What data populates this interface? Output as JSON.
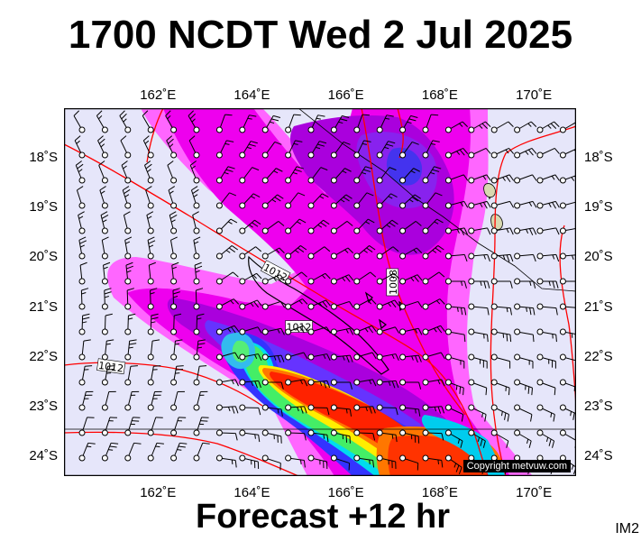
{
  "title": "1700 NCDT Wed 2 Jul 2025",
  "footer": "Forecast +12 hr",
  "corner_tag": "IM2",
  "copyright": "Copyright metvuw.com",
  "map": {
    "lon_ticks": [
      {
        "value": 162,
        "label": "162˚E"
      },
      {
        "value": 164,
        "label": "164˚E"
      },
      {
        "value": 166,
        "label": "166˚E"
      },
      {
        "value": 168,
        "label": "168˚E"
      },
      {
        "value": 170,
        "label": "170˚E"
      }
    ],
    "lat_ticks": [
      {
        "value": -18,
        "label": "18˚S"
      },
      {
        "value": -19,
        "label": "19˚S"
      },
      {
        "value": -20,
        "label": "20˚S"
      },
      {
        "value": -21,
        "label": "21˚S"
      },
      {
        "value": -22,
        "label": "22˚S"
      },
      {
        "value": -23,
        "label": "23˚S"
      },
      {
        "value": -24,
        "label": "24˚S"
      }
    ],
    "extent": {
      "lon_min": 160.0,
      "lon_max": 170.9,
      "lat_max": -17.0,
      "lat_min": -24.4
    },
    "colors": {
      "background": "#e6e6fa",
      "rain_light": "#ff66ff",
      "rain_magenta": "#ee00ee",
      "rain_purple": "#aa00dd",
      "rain_violet": "#8822ee",
      "rain_blue": "#3333ff",
      "rain_cyan": "#00ddee",
      "rain_green": "#44ee66",
      "rain_yellow": "#ffee00",
      "rain_orange": "#ff7700",
      "rain_red": "#ff3300",
      "isobar": "#ff0000",
      "coast": "#000000"
    },
    "isobar_labels": [
      {
        "text": "1012",
        "lon": 164.5,
        "lat": -20.3,
        "angle": 28
      },
      {
        "text": "1012",
        "lon": 165.0,
        "lat": -21.4,
        "angle": 0
      },
      {
        "text": "1012",
        "lon": 161.0,
        "lat": -22.2,
        "angle": 8
      },
      {
        "text": "1008",
        "lon": 167.0,
        "lat": -20.5,
        "angle": -90
      }
    ]
  }
}
